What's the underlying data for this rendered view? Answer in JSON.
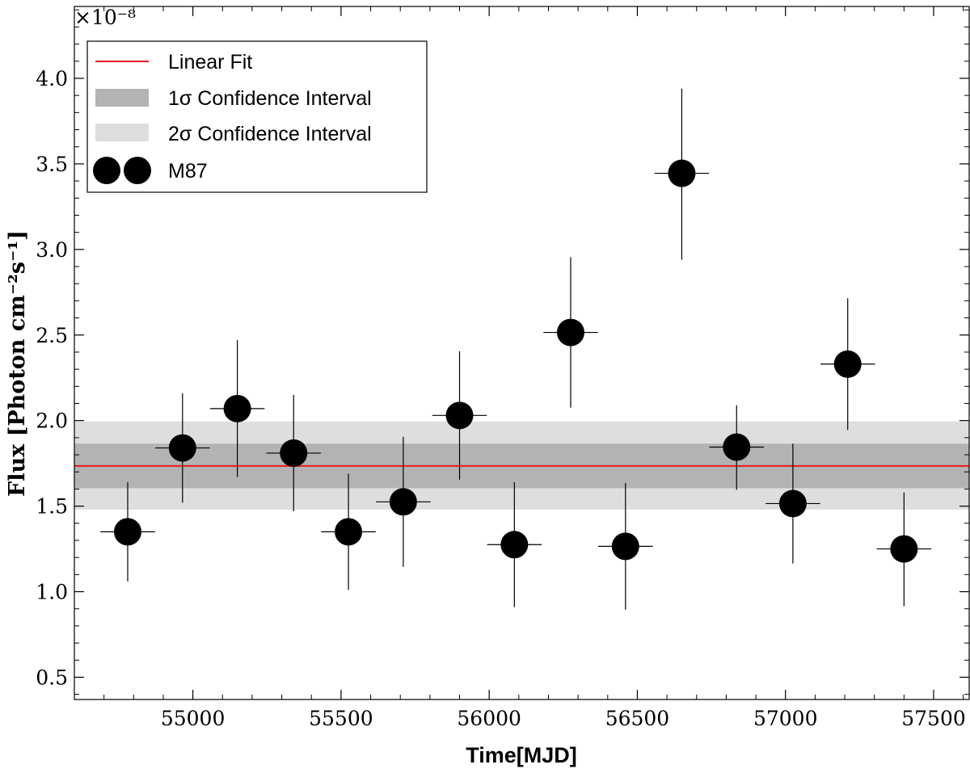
{
  "chart_data": {
    "type": "scatter",
    "xlabel": "Time[MJD]",
    "ylabel": "Flux [Photon cm⁻²s⁻¹]",
    "y_multiplier": "×10⁻⁸",
    "xlim": [
      54600,
      57620
    ],
    "ylim": [
      0.37,
      4.42
    ],
    "xticks": [
      55000,
      55500,
      56000,
      56500,
      57000,
      57500
    ],
    "yticks": [
      0.5,
      1.0,
      1.5,
      2.0,
      2.5,
      3.0,
      3.5,
      4.0
    ],
    "yticks_minor_step": 0.1,
    "xticks_minor_step": 100,
    "grid": false,
    "legend_position": "upper-left",
    "legend": {
      "linear_fit": "Linear Fit",
      "sigma1": "1σ Confidence Interval",
      "sigma2": "2σ Confidence Interval",
      "series": "M87"
    },
    "fit": {
      "value": 1.735,
      "sigma1": [
        1.605,
        1.865
      ],
      "sigma2": [
        1.48,
        1.995
      ]
    },
    "series": [
      {
        "name": "M87",
        "points": [
          {
            "x": 54780,
            "y": 1.35,
            "xerr": 92,
            "ylow": 1.06,
            "yhigh": 1.64
          },
          {
            "x": 54965,
            "y": 1.84,
            "xerr": 92,
            "ylow": 1.52,
            "yhigh": 2.16
          },
          {
            "x": 55150,
            "y": 2.07,
            "xerr": 92,
            "ylow": 1.67,
            "yhigh": 2.47
          },
          {
            "x": 55340,
            "y": 1.81,
            "xerr": 92,
            "ylow": 1.47,
            "yhigh": 2.15
          },
          {
            "x": 55525,
            "y": 1.35,
            "xerr": 92,
            "ylow": 1.01,
            "yhigh": 1.69
          },
          {
            "x": 55710,
            "y": 1.525,
            "xerr": 92,
            "ylow": 1.145,
            "yhigh": 1.905
          },
          {
            "x": 55900,
            "y": 2.03,
            "xerr": 92,
            "ylow": 1.655,
            "yhigh": 2.405
          },
          {
            "x": 56085,
            "y": 1.275,
            "xerr": 92,
            "ylow": 0.91,
            "yhigh": 1.64
          },
          {
            "x": 56275,
            "y": 2.515,
            "xerr": 92,
            "ylow": 2.075,
            "yhigh": 2.955
          },
          {
            "x": 56460,
            "y": 1.265,
            "xerr": 92,
            "ylow": 0.895,
            "yhigh": 1.635
          },
          {
            "x": 56650,
            "y": 3.445,
            "xerr": 92,
            "ylow": 2.94,
            "yhigh": 3.94
          },
          {
            "x": 56835,
            "y": 1.845,
            "xerr": 92,
            "ylow": 1.595,
            "yhigh": 2.09
          },
          {
            "x": 57025,
            "y": 1.515,
            "xerr": 92,
            "ylow": 1.165,
            "yhigh": 1.865
          },
          {
            "x": 57210,
            "y": 2.33,
            "xerr": 92,
            "ylow": 1.945,
            "yhigh": 2.715
          },
          {
            "x": 57400,
            "y": 1.25,
            "xerr": 92,
            "ylow": 0.915,
            "yhigh": 1.58
          }
        ]
      }
    ],
    "colors": {
      "fit_line": "#e8191e",
      "band1": "#b3b3b3",
      "band2": "#dedede",
      "marker": "#000000"
    }
  }
}
